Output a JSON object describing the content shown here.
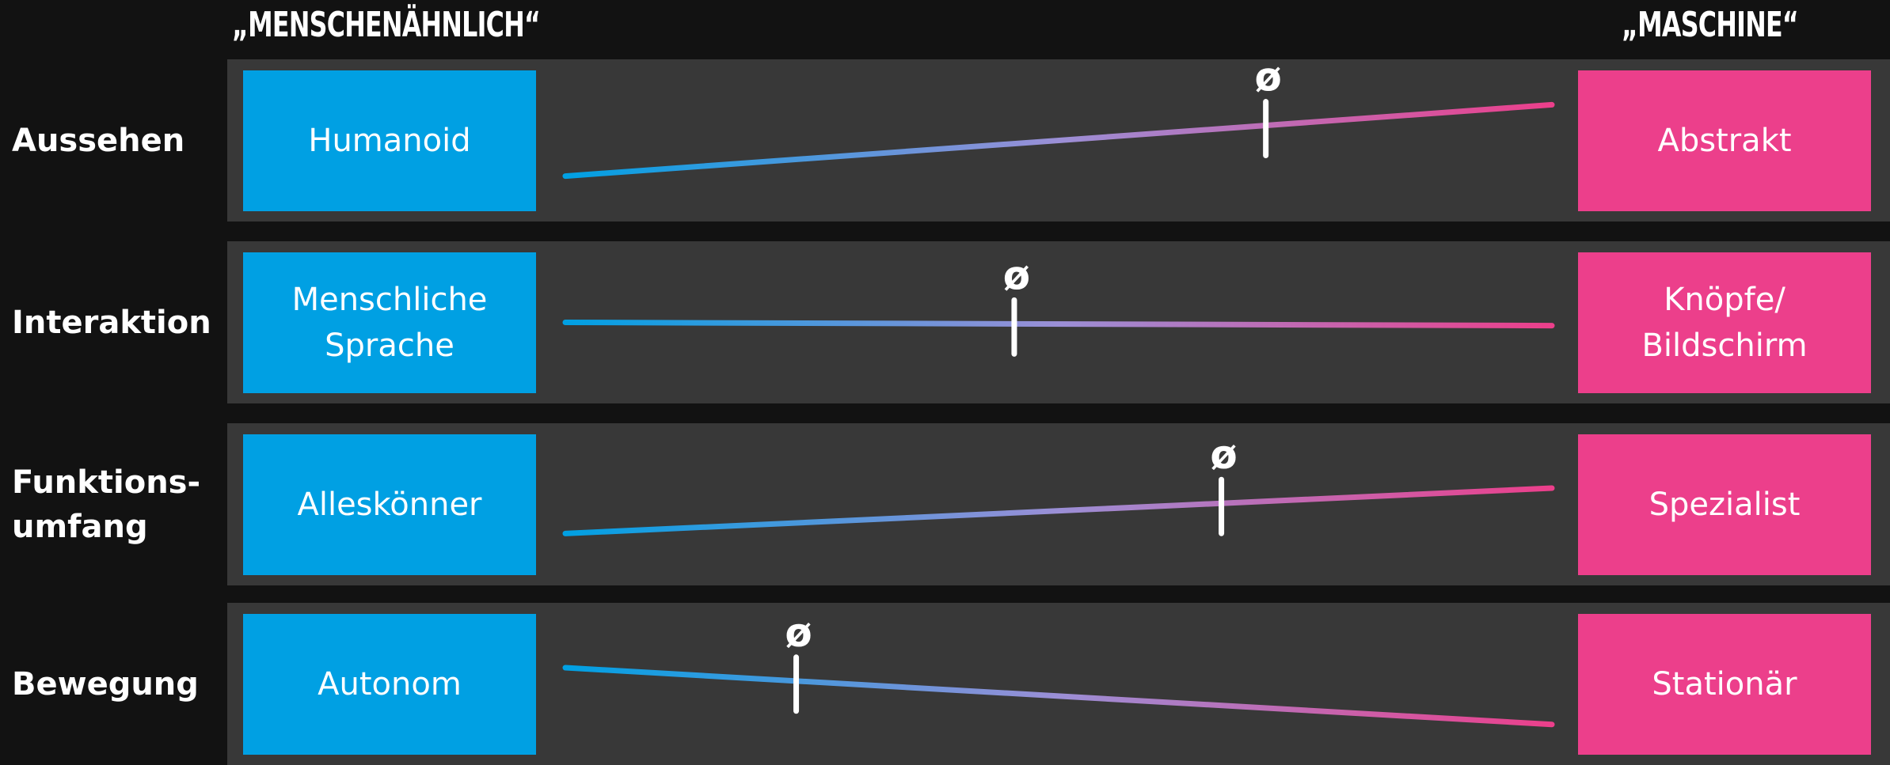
{
  "header": {
    "left_title": "„MENSCHENÄHNLICH“",
    "right_title": "„MASCHINE“"
  },
  "colors": {
    "human": "#00a0e3",
    "machine": "#ec3f8b",
    "mid": "#9b8fd6"
  },
  "rows": [
    {
      "label": "Aussehen",
      "human": "Humanoid",
      "machine": "Abstrakt",
      "average_symbol": "ø",
      "average_position": 0.71,
      "line_start_level": 0.28,
      "line_end_level": 0.72
    },
    {
      "label": "Interaktion",
      "human": "Menschliche Sprache",
      "machine": "Knöpfe/ Bildschirm",
      "average_symbol": "ø",
      "average_position": 0.455,
      "line_start_level": 0.5,
      "line_end_level": 0.48
    },
    {
      "label": "Funktions- umfang",
      "human": "Alleskönner",
      "machine": "Spezialist",
      "average_symbol": "ø",
      "average_position": 0.665,
      "line_start_level": 0.32,
      "line_end_level": 0.6
    },
    {
      "label": "Bewegung",
      "human": "Autonom",
      "machine": "Stationär",
      "average_symbol": "ø",
      "average_position": 0.234,
      "line_start_level": 0.6,
      "line_end_level": 0.25
    }
  ]
}
